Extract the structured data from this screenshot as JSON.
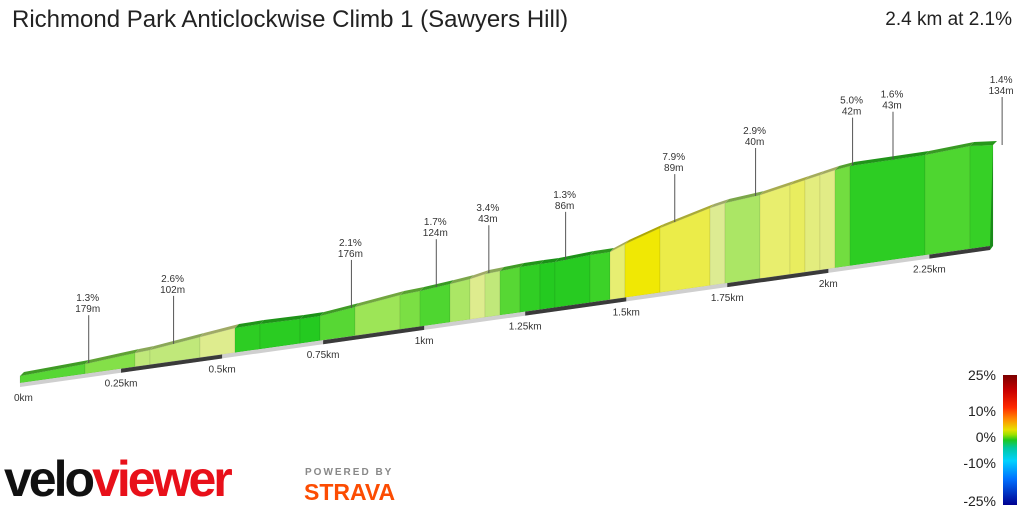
{
  "header": {
    "title": "Richmond Park Anticlockwise Climb 1 (Sawyers Hill)",
    "summary": "2.4 km at 2.1%"
  },
  "chart_data": {
    "type": "area",
    "title": "Richmond Park Anticlockwise Climb 1 (Sawyers Hill)",
    "xlabel": "",
    "ylabel": "",
    "xlim": [
      0,
      2.4
    ],
    "x_ticks": [
      "0km",
      "0.25km",
      "0.5km",
      "0.75km",
      "1km",
      "1.25km",
      "1.5km",
      "1.75km",
      "2km",
      "2.25km"
    ],
    "x_tick_values": [
      0,
      0.25,
      0.5,
      0.75,
      1.0,
      1.25,
      1.5,
      1.75,
      2.0,
      2.25
    ],
    "segment_labels": [
      {
        "gradient": "1.3%",
        "length": "179m",
        "km": 0.17
      },
      {
        "gradient": "2.6%",
        "length": "102m",
        "km": 0.38
      },
      {
        "gradient": "2.1%",
        "length": "176m",
        "km": 0.82
      },
      {
        "gradient": "1.7%",
        "length": "124m",
        "km": 1.03
      },
      {
        "gradient": "3.4%",
        "length": "43m",
        "km": 1.16
      },
      {
        "gradient": "1.3%",
        "length": "86m",
        "km": 1.35
      },
      {
        "gradient": "7.9%",
        "length": "89m",
        "km": 1.62
      },
      {
        "gradient": "2.9%",
        "length": "40m",
        "km": 1.82
      },
      {
        "gradient": "5.0%",
        "length": "42m",
        "km": 2.06
      },
      {
        "gradient": "1.6%",
        "length": "43m",
        "km": 2.16
      },
      {
        "gradient": "1.4%",
        "length": "134m",
        "km": 2.43
      }
    ],
    "color_scale_labels": [
      "25%",
      "10%",
      "0%",
      "-10%",
      "-25%"
    ]
  },
  "legend": {
    "labels": [
      "25%",
      "10%",
      "0%",
      "-10%",
      "-25%"
    ]
  },
  "branding": {
    "logo_velo": "velo",
    "logo_viewer": "viewer",
    "powered_by": "POWERED BY",
    "strava": "STRAVA"
  }
}
